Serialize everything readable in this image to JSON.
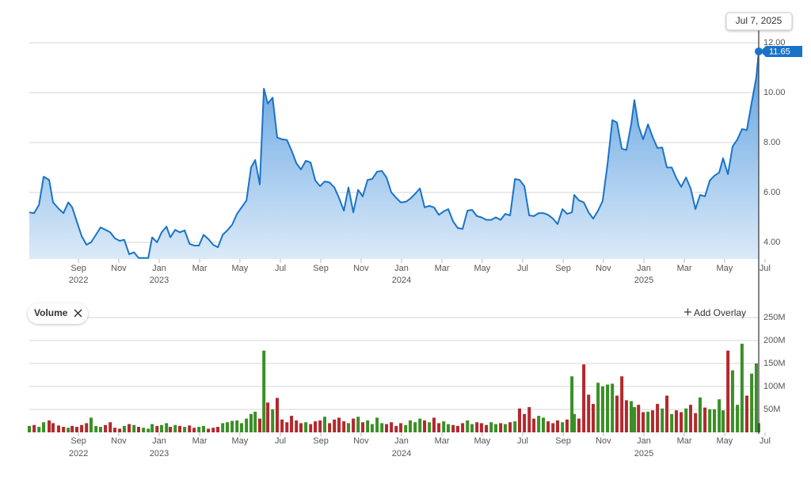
{
  "chart_data": [
    {
      "type": "line",
      "color": "#1a73c8",
      "area_top": "#5b9fe0",
      "area_bottom": "#dbeaf8",
      "grid": true,
      "crosshair_label": "Jul 7, 2025",
      "last_value_label": "11.65",
      "xlim": [
        2022.464,
        2025.474
      ],
      "ylim": [
        3.333,
        12.76
      ],
      "yticks": [
        {
          "value": 4,
          "label": "4.00"
        },
        {
          "value": 6,
          "label": "6.00"
        },
        {
          "value": 8,
          "label": "8.00"
        },
        {
          "value": 10,
          "label": "10.00"
        },
        {
          "value": 12,
          "label": "12.00"
        }
      ],
      "xticks": [
        {
          "value": 2022.667,
          "label": "Sep"
        },
        {
          "value": 2022.833,
          "label": "Nov"
        },
        {
          "value": 2023.0,
          "label": "Jan"
        },
        {
          "value": 2023.167,
          "label": "Mar"
        },
        {
          "value": 2023.333,
          "label": "May"
        },
        {
          "value": 2023.5,
          "label": "Jul"
        },
        {
          "value": 2023.667,
          "label": "Sep"
        },
        {
          "value": 2023.833,
          "label": "Nov"
        },
        {
          "value": 2024.0,
          "label": "Jan"
        },
        {
          "value": 2024.167,
          "label": "Mar"
        },
        {
          "value": 2024.333,
          "label": "May"
        },
        {
          "value": 2024.5,
          "label": "Jul"
        },
        {
          "value": 2024.667,
          "label": "Sep"
        },
        {
          "value": 2024.833,
          "label": "Nov"
        },
        {
          "value": 2025.0,
          "label": "Jan"
        },
        {
          "value": 2025.167,
          "label": "Mar"
        },
        {
          "value": 2025.333,
          "label": "May"
        },
        {
          "value": 2025.5,
          "label": "Jul"
        }
      ],
      "xyears": [
        {
          "value": 2022.667,
          "label": "2022"
        },
        {
          "value": 2023.0,
          "label": "2023"
        },
        {
          "value": 2024.0,
          "label": "2024"
        },
        {
          "value": 2025.0,
          "label": "2025"
        }
      ],
      "x": [
        2022.464,
        2022.484,
        2022.504,
        2022.523,
        2022.546,
        2022.562,
        2022.585,
        2022.605,
        2022.625,
        2022.641,
        2022.66,
        2022.68,
        2022.7,
        2022.719,
        2022.739,
        2022.758,
        2022.778,
        2022.798,
        2022.817,
        2022.837,
        2022.856,
        2022.876,
        2022.896,
        2022.915,
        2022.935,
        2022.955,
        2022.971,
        2022.991,
        2023.01,
        2023.03,
        2023.046,
        2023.066,
        2023.085,
        2023.105,
        2023.125,
        2023.144,
        2023.164,
        2023.183,
        2023.203,
        2023.223,
        2023.242,
        2023.262,
        2023.281,
        2023.301,
        2023.321,
        2023.34,
        2023.36,
        2023.379,
        2023.396,
        2023.415,
        2023.432,
        2023.448,
        2023.468,
        2023.487,
        2023.507,
        2023.527,
        2023.546,
        2023.566,
        2023.585,
        2023.605,
        2023.625,
        2023.644,
        2023.664,
        2023.683,
        2023.703,
        2023.723,
        2023.742,
        2023.762,
        2023.781,
        2023.801,
        2023.821,
        2023.84,
        2023.86,
        2023.879,
        2023.899,
        2023.919,
        2023.938,
        2023.958,
        2023.978,
        2023.997,
        2024.017,
        2024.036,
        2024.056,
        2024.076,
        2024.095,
        2024.115,
        2024.134,
        2024.154,
        2024.174,
        2024.193,
        2024.213,
        2024.232,
        2024.252,
        2024.272,
        2024.291,
        2024.311,
        2024.33,
        2024.35,
        2024.37,
        2024.389,
        2024.409,
        2024.428,
        2024.448,
        2024.468,
        2024.487,
        2024.507,
        2024.527,
        2024.546,
        2024.566,
        2024.585,
        2024.605,
        2024.625,
        2024.644,
        2024.664,
        2024.683,
        2024.703,
        2024.713,
        2024.732,
        2024.752,
        2024.772,
        2024.791,
        2024.811,
        2024.83,
        2024.85,
        2024.87,
        2024.889,
        2024.909,
        2024.928,
        2024.948,
        2024.961,
        2024.978,
        2024.997,
        2025.017,
        2025.036,
        2025.056,
        2025.076,
        2025.095,
        2025.115,
        2025.134,
        2025.154,
        2025.174,
        2025.193,
        2025.213,
        2025.232,
        2025.252,
        2025.272,
        2025.291,
        2025.311,
        2025.327,
        2025.347,
        2025.366,
        2025.386,
        2025.405,
        2025.425,
        2025.445,
        2025.464,
        2025.474
      ],
      "values": [
        5.2,
        5.17,
        5.5,
        6.63,
        6.5,
        5.6,
        5.35,
        5.17,
        5.6,
        5.4,
        4.83,
        4.25,
        3.9,
        4.0,
        4.3,
        4.6,
        4.5,
        4.4,
        4.16,
        4.06,
        4.1,
        3.52,
        3.6,
        3.37,
        3.37,
        3.37,
        4.2,
        4.0,
        4.4,
        4.63,
        4.2,
        4.5,
        4.4,
        4.48,
        3.94,
        3.87,
        3.87,
        4.3,
        4.13,
        3.9,
        3.8,
        4.3,
        4.48,
        4.7,
        5.14,
        5.4,
        5.68,
        7.0,
        7.3,
        6.32,
        10.16,
        9.56,
        9.8,
        8.2,
        8.13,
        8.1,
        7.68,
        7.17,
        6.92,
        7.27,
        7.2,
        6.48,
        6.25,
        6.44,
        6.4,
        6.2,
        5.78,
        5.27,
        6.2,
        5.2,
        6.1,
        5.84,
        6.5,
        6.54,
        6.83,
        6.86,
        6.6,
        6.0,
        5.78,
        5.6,
        5.62,
        5.75,
        5.94,
        6.16,
        5.4,
        5.46,
        5.4,
        5.1,
        5.24,
        5.33,
        4.83,
        4.57,
        4.54,
        5.27,
        5.3,
        5.05,
        5.0,
        4.9,
        4.9,
        5.0,
        4.9,
        5.14,
        5.08,
        6.54,
        6.5,
        6.25,
        5.08,
        5.05,
        5.17,
        5.17,
        5.1,
        4.95,
        4.73,
        5.33,
        5.14,
        5.2,
        5.9,
        5.68,
        5.6,
        5.2,
        4.95,
        5.27,
        5.65,
        7.14,
        8.9,
        8.8,
        7.75,
        7.7,
        8.76,
        9.7,
        8.67,
        8.13,
        8.73,
        8.22,
        7.78,
        7.8,
        7.0,
        7.0,
        6.57,
        6.22,
        6.6,
        6.16,
        5.33,
        5.9,
        5.84,
        6.48,
        6.67,
        6.8,
        7.37,
        6.73,
        7.84,
        8.13,
        8.54,
        8.5,
        9.6,
        10.6,
        11.65
      ]
    },
    {
      "type": "bar",
      "title": "Volume",
      "add_overlay": "Add Overlay",
      "up_color": "#3a8f25",
      "down_color": "#b3282d",
      "grid": true,
      "xlim": [
        2022.464,
        2025.474
      ],
      "ylim": [
        0,
        250
      ],
      "yticks": [
        {
          "value": 50,
          "label": "50M"
        },
        {
          "value": 100,
          "label": "100M"
        },
        {
          "value": 150,
          "label": "150M"
        },
        {
          "value": 200,
          "label": "200M"
        },
        {
          "value": 250,
          "label": "250M"
        }
      ],
      "xticks": [
        {
          "value": 2022.667,
          "label": "Sep"
        },
        {
          "value": 2022.833,
          "label": "Nov"
        },
        {
          "value": 2023.0,
          "label": "Jan"
        },
        {
          "value": 2023.167,
          "label": "Mar"
        },
        {
          "value": 2023.333,
          "label": "May"
        },
        {
          "value": 2023.5,
          "label": "Jul"
        },
        {
          "value": 2023.667,
          "label": "Sep"
        },
        {
          "value": 2023.833,
          "label": "Nov"
        },
        {
          "value": 2024.0,
          "label": "Jan"
        },
        {
          "value": 2024.167,
          "label": "Mar"
        },
        {
          "value": 2024.333,
          "label": "May"
        },
        {
          "value": 2024.5,
          "label": "Jul"
        },
        {
          "value": 2024.667,
          "label": "Sep"
        },
        {
          "value": 2024.833,
          "label": "Nov"
        },
        {
          "value": 2025.0,
          "label": "Jan"
        },
        {
          "value": 2025.167,
          "label": "Mar"
        },
        {
          "value": 2025.333,
          "label": "May"
        },
        {
          "value": 2025.5,
          "label": "Jul"
        }
      ],
      "xyears": [
        {
          "value": 2022.667,
          "label": "2022"
        },
        {
          "value": 2023.0,
          "label": "2023"
        },
        {
          "value": 2024.0,
          "label": "2024"
        },
        {
          "value": 2025.0,
          "label": "2025"
        }
      ],
      "x": [
        2022.464,
        2022.484,
        2022.504,
        2022.523,
        2022.546,
        2022.562,
        2022.585,
        2022.605,
        2022.625,
        2022.641,
        2022.66,
        2022.68,
        2022.7,
        2022.719,
        2022.739,
        2022.758,
        2022.778,
        2022.798,
        2022.817,
        2022.837,
        2022.856,
        2022.876,
        2022.896,
        2022.915,
        2022.935,
        2022.955,
        2022.971,
        2022.991,
        2023.01,
        2023.03,
        2023.046,
        2023.066,
        2023.085,
        2023.105,
        2023.125,
        2023.144,
        2023.164,
        2023.183,
        2023.203,
        2023.223,
        2023.242,
        2023.262,
        2023.281,
        2023.301,
        2023.321,
        2023.34,
        2023.36,
        2023.379,
        2023.396,
        2023.415,
        2023.432,
        2023.448,
        2023.468,
        2023.487,
        2023.507,
        2023.527,
        2023.546,
        2023.566,
        2023.585,
        2023.605,
        2023.625,
        2023.644,
        2023.664,
        2023.683,
        2023.703,
        2023.723,
        2023.742,
        2023.762,
        2023.781,
        2023.801,
        2023.821,
        2023.84,
        2023.86,
        2023.879,
        2023.899,
        2023.919,
        2023.938,
        2023.958,
        2023.978,
        2023.997,
        2024.017,
        2024.036,
        2024.056,
        2024.076,
        2024.095,
        2024.115,
        2024.134,
        2024.154,
        2024.174,
        2024.193,
        2024.213,
        2024.232,
        2024.252,
        2024.272,
        2024.291,
        2024.311,
        2024.33,
        2024.35,
        2024.37,
        2024.389,
        2024.409,
        2024.428,
        2024.448,
        2024.468,
        2024.487,
        2024.507,
        2024.527,
        2024.546,
        2024.566,
        2024.585,
        2024.605,
        2024.625,
        2024.644,
        2024.664,
        2024.683,
        2024.703,
        2024.713,
        2024.732,
        2024.752,
        2024.772,
        2024.791,
        2024.811,
        2024.83,
        2024.85,
        2024.87,
        2024.889,
        2024.909,
        2024.928,
        2024.948,
        2024.961,
        2024.978,
        2024.997,
        2025.017,
        2025.036,
        2025.056,
        2025.076,
        2025.095,
        2025.115,
        2025.134,
        2025.154,
        2025.174,
        2025.193,
        2025.213,
        2025.232,
        2025.252,
        2025.272,
        2025.291,
        2025.311,
        2025.327,
        2025.347,
        2025.366,
        2025.386,
        2025.405,
        2025.425,
        2025.445,
        2025.464,
        2025.474
      ],
      "values": [
        14,
        16,
        12,
        22,
        26,
        20,
        15,
        12,
        10,
        14,
        12,
        16,
        20,
        32,
        14,
        12,
        16,
        22,
        10,
        8,
        14,
        18,
        16,
        12,
        10,
        8,
        18,
        14,
        16,
        20,
        12,
        16,
        14,
        12,
        15,
        10,
        12,
        14,
        8,
        10,
        12,
        20,
        22,
        25,
        26,
        20,
        30,
        40,
        45,
        30,
        178,
        65,
        50,
        75,
        28,
        22,
        36,
        26,
        20,
        22,
        18,
        24,
        26,
        34,
        20,
        28,
        32,
        24,
        20,
        30,
        34,
        22,
        26,
        18,
        32,
        20,
        18,
        22,
        14,
        20,
        16,
        26,
        22,
        30,
        26,
        22,
        32,
        20,
        24,
        18,
        16,
        14,
        20,
        26,
        18,
        22,
        20,
        16,
        22,
        18,
        20,
        18,
        22,
        24,
        52,
        40,
        55,
        30,
        36,
        32,
        24,
        20,
        26,
        22,
        28,
        122,
        40,
        30,
        148,
        82,
        62,
        108,
        100,
        104,
        106,
        80,
        122,
        70,
        68,
        55,
        60,
        44,
        45,
        48,
        62,
        52,
        80,
        40,
        48,
        44,
        52,
        60,
        42,
        76,
        54,
        50,
        50,
        72,
        48,
        178,
        135,
        60,
        193,
        80,
        128,
        150,
        20
      ]
    }
  ]
}
